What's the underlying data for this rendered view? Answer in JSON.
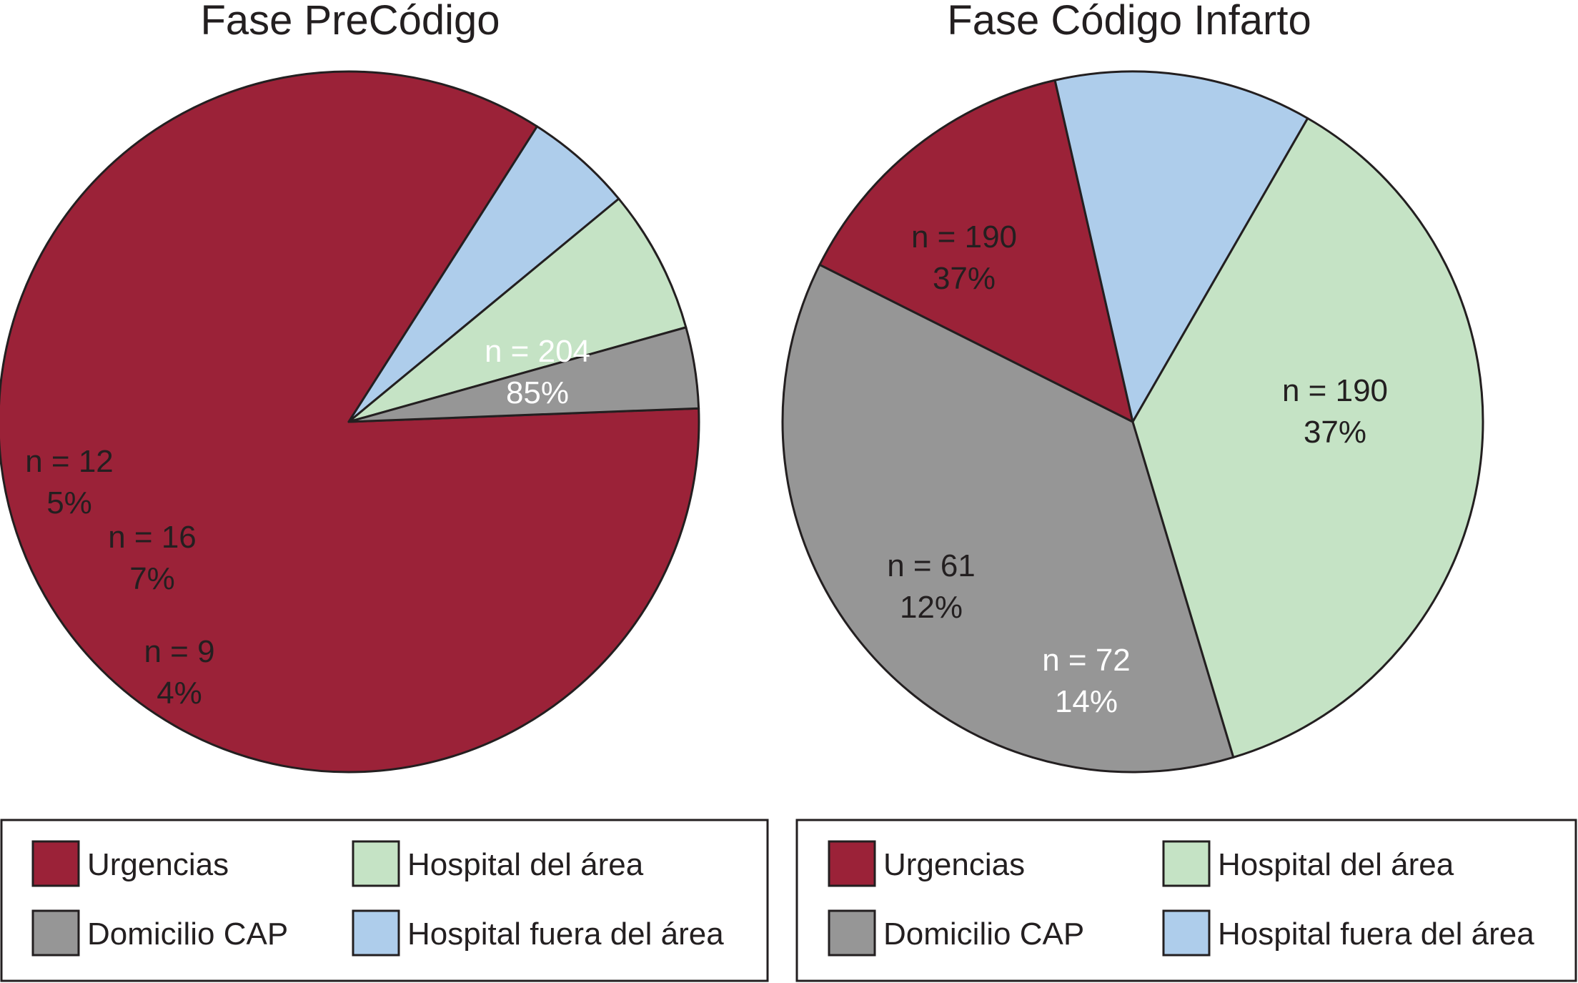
{
  "chart_data": [
    {
      "type": "pie",
      "title": "Fase PreCódigo",
      "slices": [
        {
          "label": "Urgencias",
          "n": 204,
          "n_text": "n = 204",
          "percent": 85,
          "percent_text": "85%",
          "color": "#9b2238",
          "text_color": "#ffffff"
        },
        {
          "label": "Hospital fuera del área",
          "n": 12,
          "n_text": "n = 12",
          "percent": 5,
          "percent_text": "5%",
          "color": "#aecdeb",
          "text_color": "#231f20"
        },
        {
          "label": "Hospital del área",
          "n": 16,
          "n_text": "n = 16",
          "percent": 7,
          "percent_text": "7%",
          "color": "#c5e3c5",
          "text_color": "#231f20"
        },
        {
          "label": "Domicilio CAP",
          "n": 9,
          "n_text": "n = 9",
          "percent": 4,
          "percent_text": "4%",
          "color": "#969696",
          "text_color": "#231f20"
        }
      ],
      "legend": [
        {
          "label": "Urgencias",
          "color": "#9b2238"
        },
        {
          "label": "Hospital del área",
          "color": "#c5e3c5"
        },
        {
          "label": "Domicilio CAP",
          "color": "#969696"
        },
        {
          "label": "Hospital fuera del área",
          "color": "#aecdeb"
        }
      ],
      "legend_position": "bottom"
    },
    {
      "type": "pie",
      "title": "Fase Código Infarto",
      "slices": [
        {
          "label": "Domicilio CAP",
          "n": 190,
          "n_text": "n = 190",
          "percent": 37,
          "percent_text": "37%",
          "color": "#969696",
          "text_color": "#231f20"
        },
        {
          "label": "Urgencias",
          "n": 72,
          "n_text": "n = 72",
          "percent": 14,
          "percent_text": "14%",
          "color": "#9b2238",
          "text_color": "#ffffff"
        },
        {
          "label": "Hospital fuera del área",
          "n": 61,
          "n_text": "n = 61",
          "percent": 12,
          "percent_text": "12%",
          "color": "#aecdeb",
          "text_color": "#231f20"
        },
        {
          "label": "Hospital del área",
          "n": 190,
          "n_text": "n = 190",
          "percent": 37,
          "percent_text": "37%",
          "color": "#c5e3c5",
          "text_color": "#231f20"
        }
      ],
      "legend": [
        {
          "label": "Urgencias",
          "color": "#9b2238"
        },
        {
          "label": "Hospital del área",
          "color": "#c5e3c5"
        },
        {
          "label": "Domicilio CAP",
          "color": "#969696"
        },
        {
          "label": "Hospital fuera del área",
          "color": "#aecdeb"
        }
      ],
      "legend_position": "bottom"
    }
  ]
}
